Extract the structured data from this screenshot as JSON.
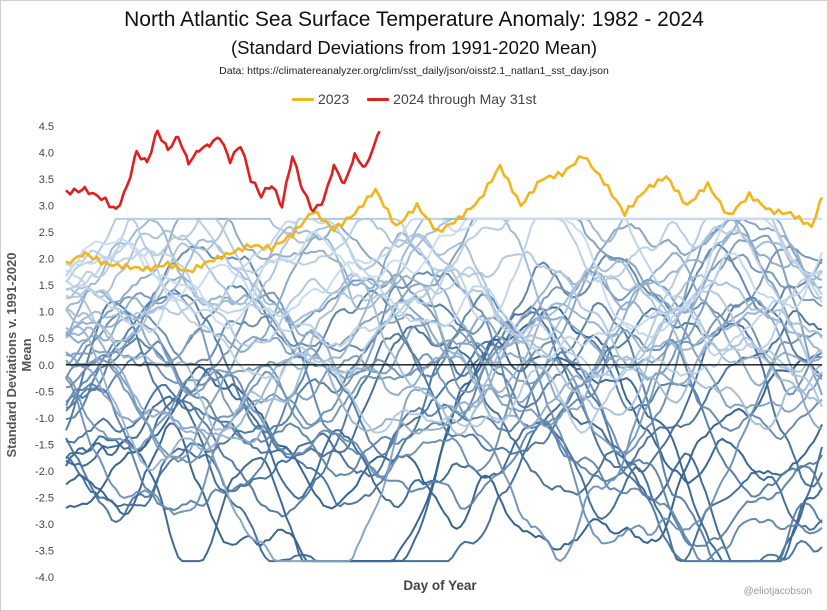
{
  "chart_data": {
    "type": "line",
    "title": "North Atlantic Sea Surface Temperature Anomaly: 1982 - 2024",
    "subtitle": "(Standard Deviations from 1991-2020 Mean)",
    "source": "Data: https://climatereanalyzer.org/clim/sst_daily/json/oisst2.1_natlan1_sst_day.json",
    "xlabel": "Day of Year",
    "ylabel": "Standard Deviations v. 1991-2020 Mean",
    "ylim": [
      -4.0,
      4.5
    ],
    "xlim": [
      1,
      365
    ],
    "yticks": [
      "4.5",
      "4.0",
      "3.5",
      "3.0",
      "2.5",
      "2.0",
      "1.5",
      "1.0",
      "0.5",
      "0.0",
      "-0.5",
      "-1.0",
      "-1.5",
      "-2.0",
      "-2.5",
      "-3.0",
      "-3.5",
      "-4.0"
    ],
    "legend_position": "top-center",
    "grid": false,
    "zero_line": true,
    "highlight_series": [
      {
        "name": "2023",
        "color": "#f2b51c",
        "x": [
          1,
          10,
          20,
          30,
          40,
          50,
          60,
          70,
          80,
          90,
          100,
          110,
          120,
          130,
          140,
          150,
          160,
          170,
          180,
          190,
          200,
          210,
          220,
          230,
          240,
          250,
          260,
          270,
          280,
          290,
          300,
          310,
          320,
          330,
          340,
          350,
          360,
          365
        ],
        "y": [
          1.9,
          2.1,
          1.9,
          1.85,
          1.8,
          1.9,
          1.75,
          1.95,
          2.1,
          2.25,
          2.2,
          2.45,
          2.9,
          2.55,
          2.85,
          3.3,
          2.6,
          3.0,
          2.5,
          2.75,
          3.1,
          3.75,
          3.0,
          3.5,
          3.6,
          3.95,
          3.45,
          2.85,
          3.3,
          3.55,
          3.0,
          3.4,
          2.8,
          3.2,
          2.9,
          2.85,
          2.6,
          3.15
        ]
      },
      {
        "name": "2024 through May 31st",
        "color": "#e02020",
        "x": [
          1,
          10,
          20,
          25,
          30,
          35,
          40,
          45,
          50,
          55,
          60,
          65,
          70,
          75,
          80,
          85,
          90,
          95,
          100,
          105,
          110,
          115,
          120,
          125,
          130,
          135,
          140,
          145,
          152
        ],
        "y": [
          3.25,
          3.3,
          3.1,
          2.9,
          3.3,
          4.0,
          3.8,
          4.4,
          4.05,
          4.3,
          3.8,
          4.05,
          4.15,
          4.3,
          3.85,
          4.15,
          3.5,
          3.2,
          3.4,
          3.0,
          3.95,
          3.3,
          2.9,
          3.1,
          3.75,
          3.4,
          3.95,
          3.7,
          4.4
        ]
      }
    ],
    "background_years": {
      "count": 41,
      "years": "1982-2022",
      "color_range": [
        "#2c5c8c",
        "#c9dcf0"
      ],
      "series_means": [
        -2.6,
        -2.3,
        -2.1,
        -1.9,
        -1.8,
        -1.6,
        -1.5,
        -1.3,
        -1.2,
        -1.1,
        -0.95,
        -0.85,
        -0.7,
        -0.6,
        -0.45,
        -0.35,
        -0.25,
        -0.1,
        0.0,
        0.1,
        0.2,
        0.3,
        0.35,
        0.45,
        0.55,
        0.6,
        0.7,
        0.8,
        0.85,
        0.95,
        1.0,
        1.1,
        1.2,
        1.3,
        1.4,
        1.5,
        1.6,
        1.7,
        1.8,
        1.95,
        2.1
      ]
    }
  },
  "watermark": "@eliotjacobson"
}
